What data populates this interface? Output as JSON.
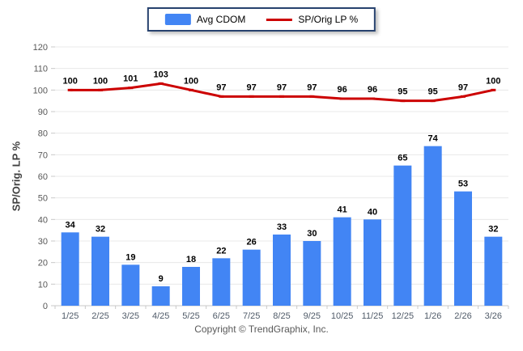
{
  "chart_data": {
    "type": "combo",
    "categories": [
      "1/25",
      "2/25",
      "3/25",
      "4/25",
      "5/25",
      "6/25",
      "7/25",
      "8/25",
      "9/25",
      "10/25",
      "11/25",
      "12/25",
      "1/26",
      "2/26",
      "3/26"
    ],
    "series": [
      {
        "name": "Avg CDOM",
        "type": "bar",
        "color": "#4285F4",
        "values": [
          34,
          32,
          19,
          9,
          18,
          22,
          26,
          33,
          30,
          41,
          40,
          65,
          74,
          53,
          32
        ]
      },
      {
        "name": "SP/Orig LP %",
        "type": "line",
        "color": "#CC0000",
        "values": [
          100,
          100,
          101,
          103,
          100,
          97,
          97,
          97,
          97,
          96,
          96,
          95,
          95,
          97,
          100
        ]
      }
    ],
    "title": "",
    "xlabel": "",
    "ylabel": "SP/Orig. LP %",
    "ylim": [
      0,
      120
    ],
    "ytick_step": 10,
    "grid": true,
    "legend_position": "top"
  },
  "footer": {
    "copyright": "Copyright © TrendGraphix, Inc."
  },
  "colors": {
    "grid": "#E8E8E8",
    "axis": "#C8C8C8",
    "tick_text": "#595959",
    "xtick_text": "#4F5A68",
    "value_label": "#000000",
    "legend_border": "#27426E"
  }
}
